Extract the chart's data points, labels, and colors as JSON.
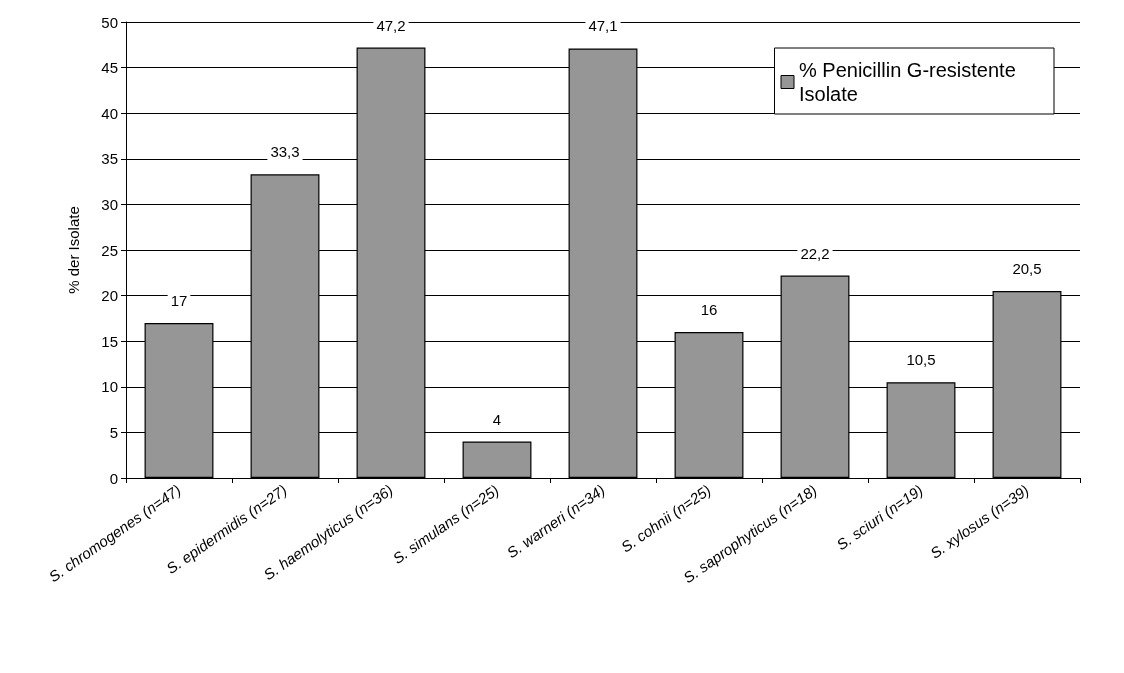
{
  "chart_data": {
    "type": "bar",
    "ylabel": "% der Isolate",
    "categories": [
      "S. chromogenes (n=47)",
      "S. epidermidis (n=27)",
      "S. haemolyticus (n=36)",
      "S. simulans (n=25)",
      "S. warneri (n=34)",
      "S. cohnii (n=25)",
      "S. saprophyticus (n=18)",
      "S. sciuri (n=19)",
      "S. xylosus (n=39)"
    ],
    "series": [
      {
        "name": "% Penicillin G-resistente Isolate",
        "color": "#969696",
        "values": [
          17,
          33.3,
          47.2,
          4,
          47.1,
          16,
          22.2,
          10.5,
          20.5
        ],
        "value_labels": [
          "17",
          "33,3",
          "47,2",
          "4",
          "47,1",
          "16",
          "22,2",
          "10,5",
          "20,5"
        ]
      }
    ],
    "ylim": [
      0,
      50
    ],
    "yticks": [
      0,
      5,
      10,
      15,
      20,
      25,
      30,
      35,
      40,
      45,
      50
    ],
    "grid": "y",
    "legend": "top right"
  }
}
